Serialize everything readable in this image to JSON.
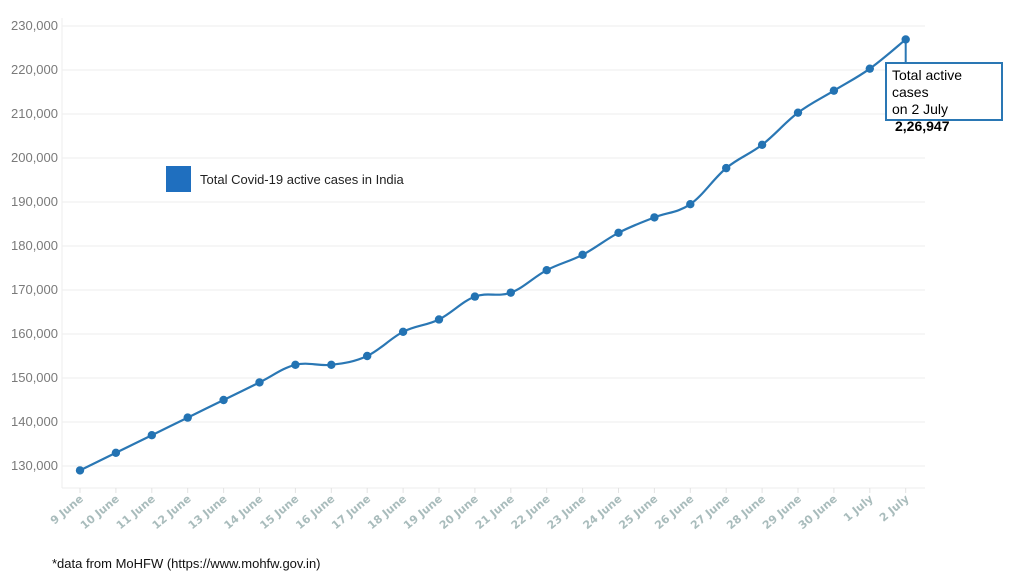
{
  "chart_data": {
    "type": "line",
    "title": "",
    "xlabel": "",
    "ylabel": "",
    "ylim": [
      125000,
      230000
    ],
    "yticks": [
      130000,
      140000,
      150000,
      160000,
      170000,
      180000,
      190000,
      200000,
      210000,
      220000,
      230000
    ],
    "ytick_labels": [
      "130,000",
      "140,000",
      "150,000",
      "160,000",
      "170,000",
      "180,000",
      "190,000",
      "200,000",
      "210,000",
      "220,000",
      "230,000"
    ],
    "grid": true,
    "legend_position": "upper-left inside",
    "categories": [
      "9 June",
      "10 June",
      "11 June",
      "12 June",
      "13 June",
      "14 June",
      "15 June",
      "16 June",
      "17 June",
      "18 June",
      "19 June",
      "20 June",
      "21 June",
      "22 June",
      "23 June",
      "24 June",
      "25 June",
      "26 June",
      "27 June",
      "28 June",
      "29 June",
      "30 June",
      "1 July",
      "2 July"
    ],
    "series": [
      {
        "name": "Total Covid-19 active cases in India",
        "color": "#2a77b4",
        "values": [
          129000,
          133000,
          137000,
          141000,
          145000,
          149000,
          153000,
          153000,
          155000,
          160500,
          163300,
          168500,
          169400,
          174500,
          178000,
          183000,
          186500,
          189500,
          197700,
          203000,
          210300,
          215300,
          220300,
          226947
        ]
      }
    ],
    "annotation": {
      "target": "2 July",
      "line1": "Total active cases",
      "line2": "on 2 July",
      "value": "2,26,947"
    }
  },
  "legend": {
    "label": "Total Covid-19 active cases in India",
    "color": "#1f6fbf"
  },
  "footnote": "*data from MoHFW (https://www.mohfw.gov.in)"
}
